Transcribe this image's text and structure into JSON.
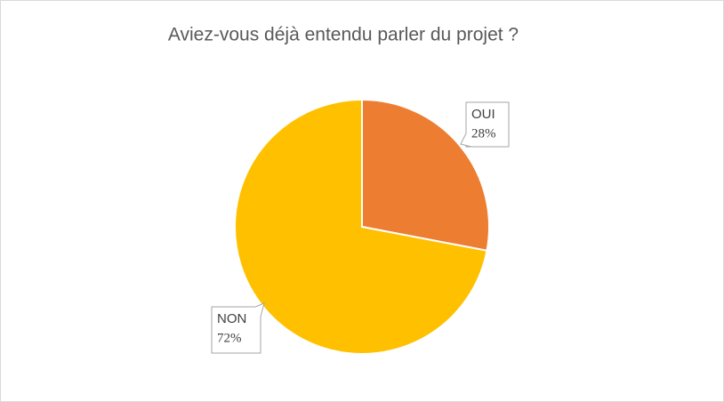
{
  "chart_data": {
    "type": "pie",
    "title": "Aviez-vous déjà entendu parler du projet ?",
    "categories": [
      "OUI",
      "NON"
    ],
    "values": [
      28,
      72
    ],
    "value_labels": [
      "28%",
      "72%"
    ],
    "colors": [
      "#ED7D31",
      "#FFC000"
    ]
  }
}
